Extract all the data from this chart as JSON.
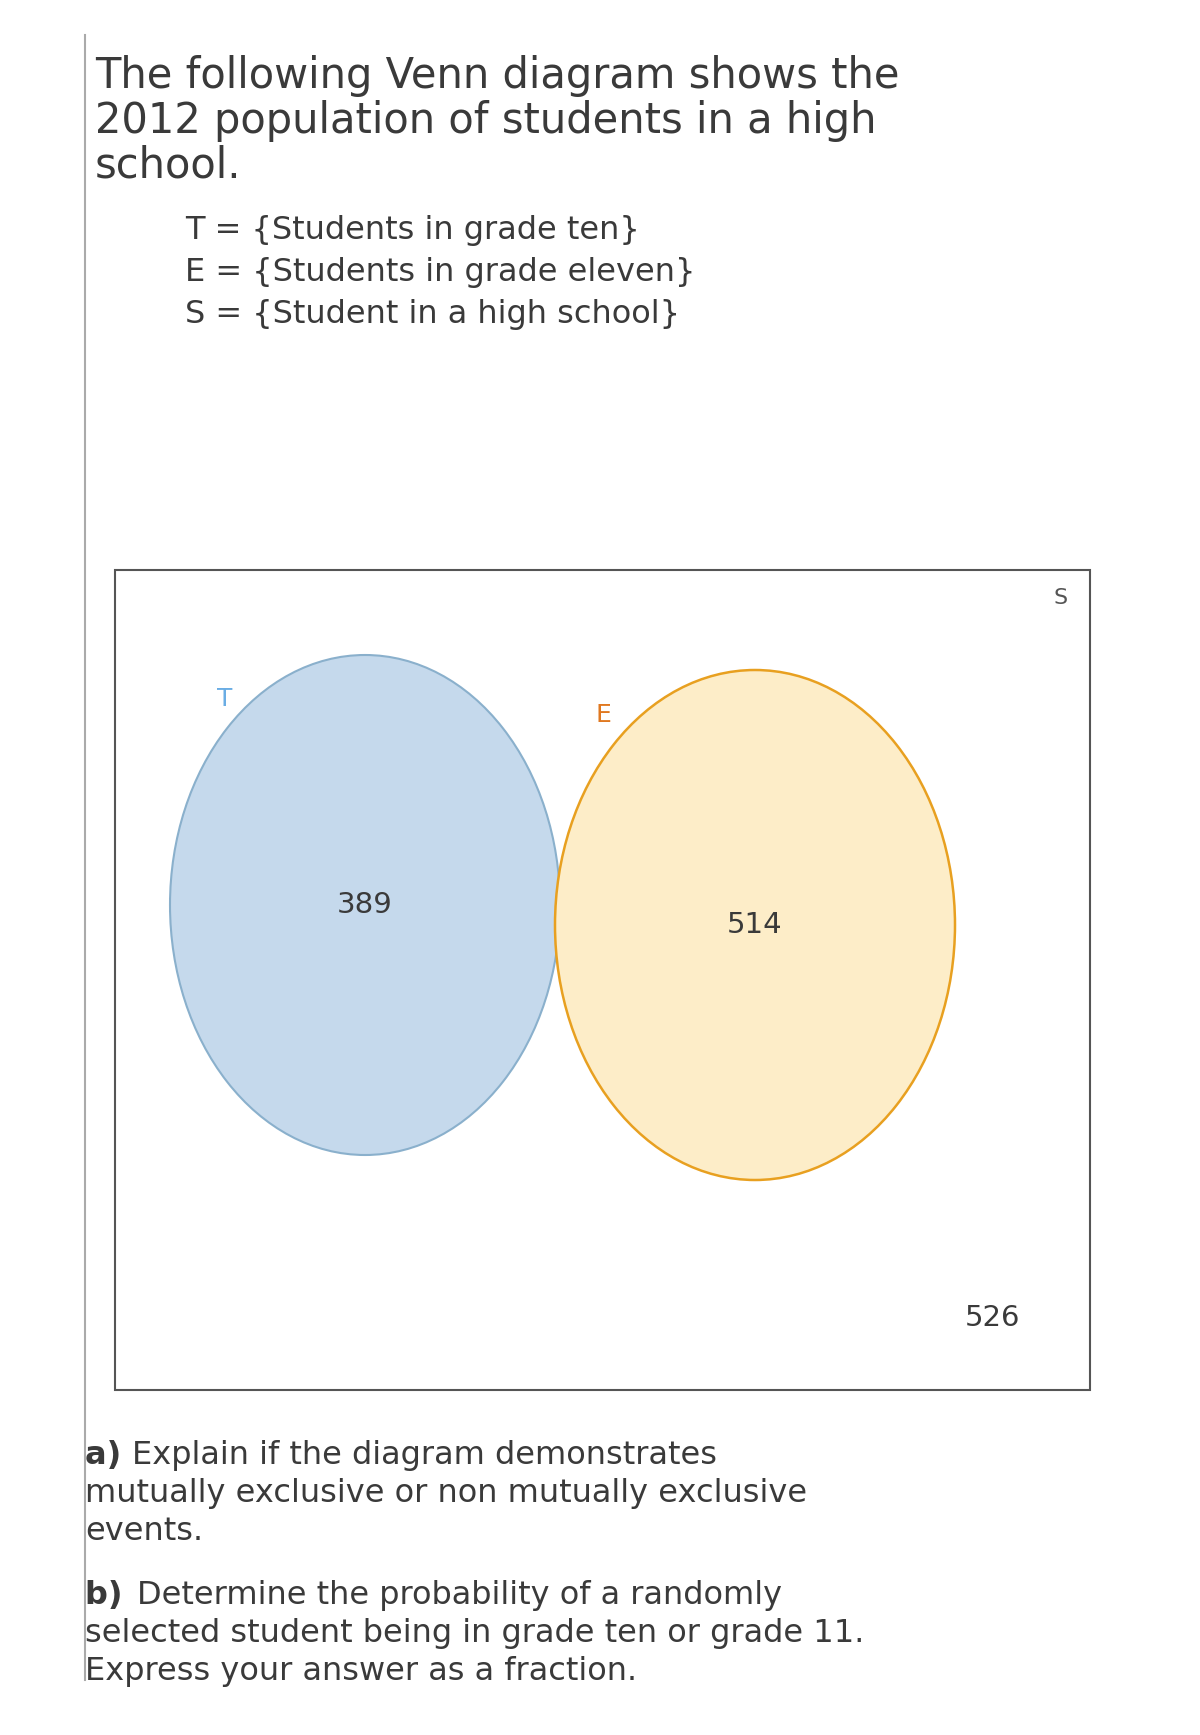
{
  "title_line1": "The following Venn diagram shows the",
  "title_line2": "2012 population of students in a high",
  "title_line3": "school.",
  "legend_T": "T = {Students in grade ten}",
  "legend_E": "E = {Students in grade eleven}",
  "legend_S": "S = {Student in a high school}",
  "circle_T_color": "#c5d9ec",
  "circle_T_edge": "#8ab0cc",
  "circle_E_color": "#fdedc8",
  "circle_E_edge": "#e8a020",
  "value_T": "389",
  "value_E": "514",
  "value_outside": "526",
  "label_T": "T",
  "label_E": "E",
  "label_S": "S",
  "label_T_color": "#6aade4",
  "label_E_color": "#e07820",
  "label_S_color": "#555555",
  "text_color": "#3a3a3a",
  "box_bg": "#ffffff",
  "box_edge": "#555555",
  "bg_color": "#ffffff",
  "title_fontsize": 30,
  "legend_fontsize": 23,
  "venn_number_fontsize": 21,
  "venn_label_fontsize": 18,
  "question_fontsize": 23,
  "border_color": "#aaaaaa"
}
